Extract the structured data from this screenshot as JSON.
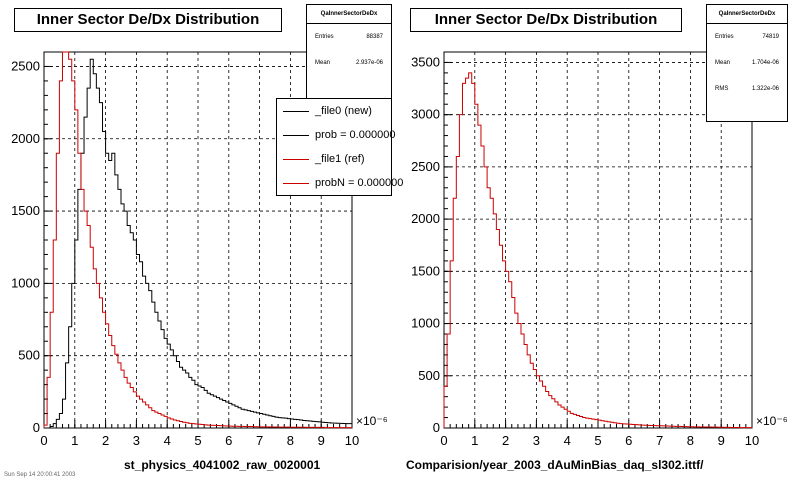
{
  "footer": {
    "left_text": "Sun Sep 14 20:00:41 2003"
  },
  "chart_data": [
    {
      "type": "histogram",
      "title": "Inner Sector De/Dx Distribution",
      "xlabel": "st_physics_4041002_raw_0020001",
      "x_exponent": "×10⁻⁶",
      "xlim": [
        0,
        10
      ],
      "ylim": [
        0,
        2600
      ],
      "xticks": [
        0,
        1,
        2,
        3,
        4,
        5,
        6,
        7,
        8,
        9,
        10
      ],
      "yticks": [
        0,
        500,
        1000,
        1500,
        2000,
        2500
      ],
      "grid": true,
      "stats": {
        "header": "QaInnerSectorDeDx",
        "rows": [
          {
            "label": "Entries",
            "value": "88387"
          },
          {
            "label": "Mean",
            "value": "2.937e-06"
          }
        ]
      },
      "legend": [
        {
          "label": "_file0 (new)",
          "color": "#000000"
        },
        {
          "label": "prob = 0.000000",
          "color": "#000000"
        },
        {
          "label": "_file1 (ref)",
          "color": "#cc0000"
        },
        {
          "label": "probN = 0.000000",
          "color": "#cc0000"
        }
      ],
      "series": [
        {
          "name": "_file0 (new)",
          "color": "#000000",
          "bin_width": 0.1,
          "x_start": 0.0,
          "values": [
            0,
            0,
            10,
            30,
            60,
            100,
            200,
            450,
            700,
            1000,
            1300,
            1650,
            1900,
            2150,
            2350,
            2550,
            2450,
            2350,
            2250,
            2050,
            1900,
            1850,
            1900,
            1750,
            1650,
            1550,
            1500,
            1400,
            1350,
            1300,
            1200,
            1150,
            1050,
            1000,
            950,
            870,
            800,
            740,
            680,
            620,
            580,
            540,
            500,
            460,
            420,
            400,
            380,
            350,
            330,
            300,
            290,
            280,
            260,
            240,
            230,
            220,
            210,
            200,
            190,
            180,
            170,
            160,
            150,
            140,
            130,
            125,
            120,
            115,
            110,
            105,
            100,
            95,
            90,
            85,
            80,
            75,
            72,
            70,
            68,
            65,
            62,
            60,
            58,
            55,
            52,
            50,
            48,
            46,
            44,
            42,
            40,
            38,
            36,
            35,
            34,
            33,
            32,
            31,
            30,
            30
          ]
        },
        {
          "name": "_file1 (ref)",
          "color": "#cc0000",
          "bin_width": 0.1,
          "x_start": 0.0,
          "values": [
            20,
            350,
            800,
            1300,
            1900,
            2400,
            2600,
            2600,
            2550,
            2400,
            2200,
            1900,
            1650,
            1500,
            1400,
            1250,
            1100,
            1000,
            900,
            800,
            720,
            640,
            570,
            510,
            450,
            400,
            350,
            310,
            280,
            250,
            220,
            200,
            180,
            160,
            140,
            120,
            110,
            100,
            90,
            80,
            70,
            62,
            55,
            50,
            45,
            40,
            36,
            32,
            30,
            28,
            26,
            24,
            22,
            20,
            19,
            18,
            17,
            16,
            15,
            14,
            13,
            12,
            12,
            11,
            11,
            10,
            10,
            10,
            9,
            9,
            8,
            8,
            8,
            7,
            7,
            7,
            6,
            6,
            6,
            6,
            5,
            5,
            5,
            5,
            5,
            4,
            4,
            4,
            4,
            4,
            4,
            3,
            3,
            3,
            3,
            3,
            3,
            3,
            3,
            3
          ]
        }
      ]
    },
    {
      "type": "histogram",
      "title": "Inner Sector De/Dx Distribution",
      "xlabel": "Comparision/year_2003_dAuMinBias_daq_sl302.ittf/",
      "x_exponent": "×10⁻⁶",
      "xlim": [
        0,
        10
      ],
      "ylim": [
        0,
        3600
      ],
      "xticks": [
        0,
        1,
        2,
        3,
        4,
        5,
        6,
        7,
        8,
        9,
        10
      ],
      "yticks": [
        0,
        500,
        1000,
        1500,
        2000,
        2500,
        3000,
        3500
      ],
      "grid": true,
      "stats": {
        "header": "QaInnerSectorDeDx",
        "rows": [
          {
            "label": "Entries",
            "value": "74819"
          },
          {
            "label": "Mean",
            "value": "1.704e-06"
          },
          {
            "label": "RMS",
            "value": "1.322e-06"
          }
        ]
      },
      "series": [
        {
          "name": "",
          "color": "#cc0000",
          "bin_width": 0.1,
          "x_start": 0.0,
          "values": [
            400,
            900,
            1600,
            2200,
            2600,
            3000,
            3300,
            3350,
            3400,
            3300,
            3100,
            2900,
            2700,
            2500,
            2300,
            2200,
            2050,
            1900,
            1750,
            1600,
            1500,
            1400,
            1250,
            1100,
            1000,
            900,
            800,
            700,
            620,
            560,
            500,
            450,
            400,
            350,
            310,
            280,
            250,
            220,
            200,
            180,
            160,
            140,
            130,
            120,
            110,
            100,
            95,
            90,
            85,
            80,
            75,
            70,
            65,
            60,
            55,
            50,
            46,
            42,
            40,
            38,
            36,
            34,
            32,
            30,
            28,
            26,
            25,
            24,
            23,
            22,
            21,
            20,
            19,
            18,
            17,
            16,
            15,
            14,
            13,
            12,
            12,
            11,
            11,
            10,
            10,
            9,
            9,
            8,
            8,
            7,
            7,
            6,
            6,
            5,
            5,
            5,
            4,
            4,
            4,
            4
          ]
        }
      ]
    }
  ]
}
